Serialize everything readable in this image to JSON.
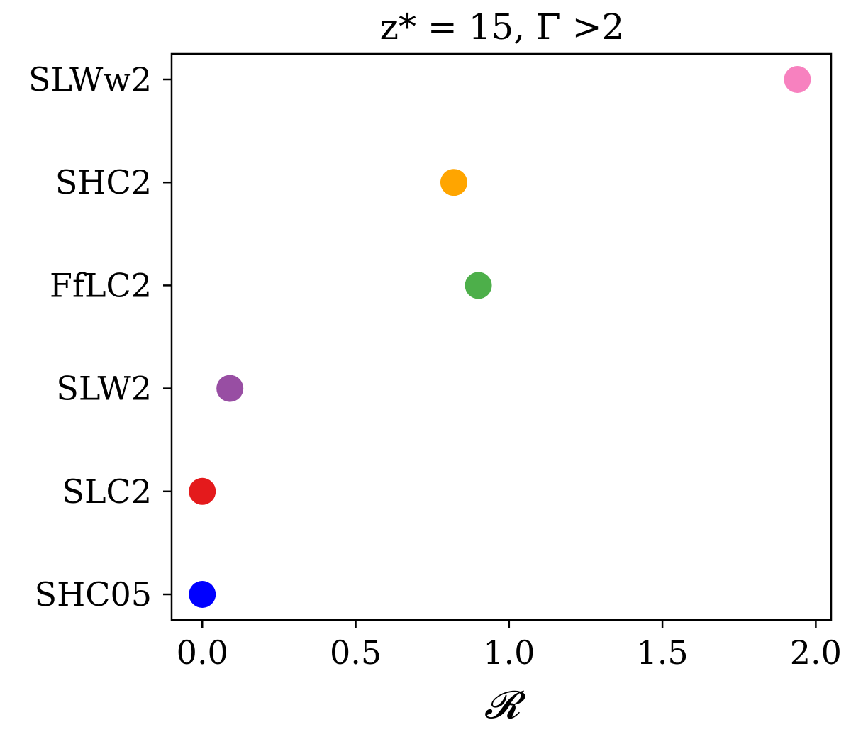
{
  "chart_data": {
    "type": "scatter",
    "title": "z* = 15, Γ >2",
    "xlabel": "𝓡",
    "ylabel": "",
    "xlim": [
      -0.1,
      2.05
    ],
    "xticks": [
      "0.0",
      "0.5",
      "1.0",
      "1.5",
      "2.0"
    ],
    "xtick_values": [
      0.0,
      0.5,
      1.0,
      1.5,
      2.0
    ],
    "categories": [
      "SHC05",
      "SLC2",
      "SLW2",
      "FfLC2",
      "SHC2",
      "SLWw2"
    ],
    "points": [
      {
        "category": "SHC05",
        "x": 0.0,
        "color": "#0000ff"
      },
      {
        "category": "SLC2",
        "x": 0.0,
        "color": "#e41a1c"
      },
      {
        "category": "SLW2",
        "x": 0.09,
        "color": "#984ea3"
      },
      {
        "category": "FfLC2",
        "x": 0.9,
        "color": "#4daf4a"
      },
      {
        "category": "SHC2",
        "x": 0.82,
        "color": "#ffa500"
      },
      {
        "category": "SLWw2",
        "x": 1.94,
        "color": "#f781bf"
      }
    ],
    "grid": false,
    "legend": "none"
  }
}
